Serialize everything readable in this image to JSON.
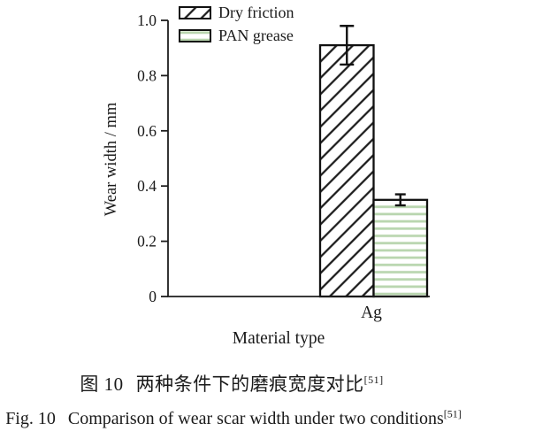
{
  "figure": {
    "caption_cn": {
      "label": "图 10",
      "text": "两种条件下的磨痕宽度对比",
      "ref": "[51]"
    },
    "caption_en": {
      "label": "Fig. 10",
      "text": "Comparison of wear scar width under two conditions",
      "ref": "[51]"
    }
  },
  "chart_data": {
    "type": "bar",
    "title": "",
    "xlabel": "Material type",
    "ylabel": "Wear width / mm",
    "categories": [
      "Ag"
    ],
    "series": [
      {
        "name": "Dry friction",
        "values": [
          0.91
        ],
        "errors": [
          0.07
        ],
        "pattern": "diagonal-hatch",
        "pattern_color": "#1d1d1d",
        "fill": "#ffffff"
      },
      {
        "name": "PAN grease",
        "values": [
          0.35
        ],
        "errors": [
          0.02
        ],
        "pattern": "horizontal-lines",
        "pattern_color": "#b9d6af",
        "fill": "#ffffff"
      }
    ],
    "ylim": [
      0,
      1.0
    ],
    "yticks": [
      0,
      0.2,
      0.4,
      0.6,
      0.8,
      1.0
    ],
    "ytick_labels": [
      "0",
      "0.2",
      "0.4",
      "0.6",
      "0.8",
      "1.0"
    ],
    "grid": false,
    "legend_position": "top-left-inside",
    "axis_color": "#1d1d1d",
    "text_color": "#1a1a1a"
  }
}
